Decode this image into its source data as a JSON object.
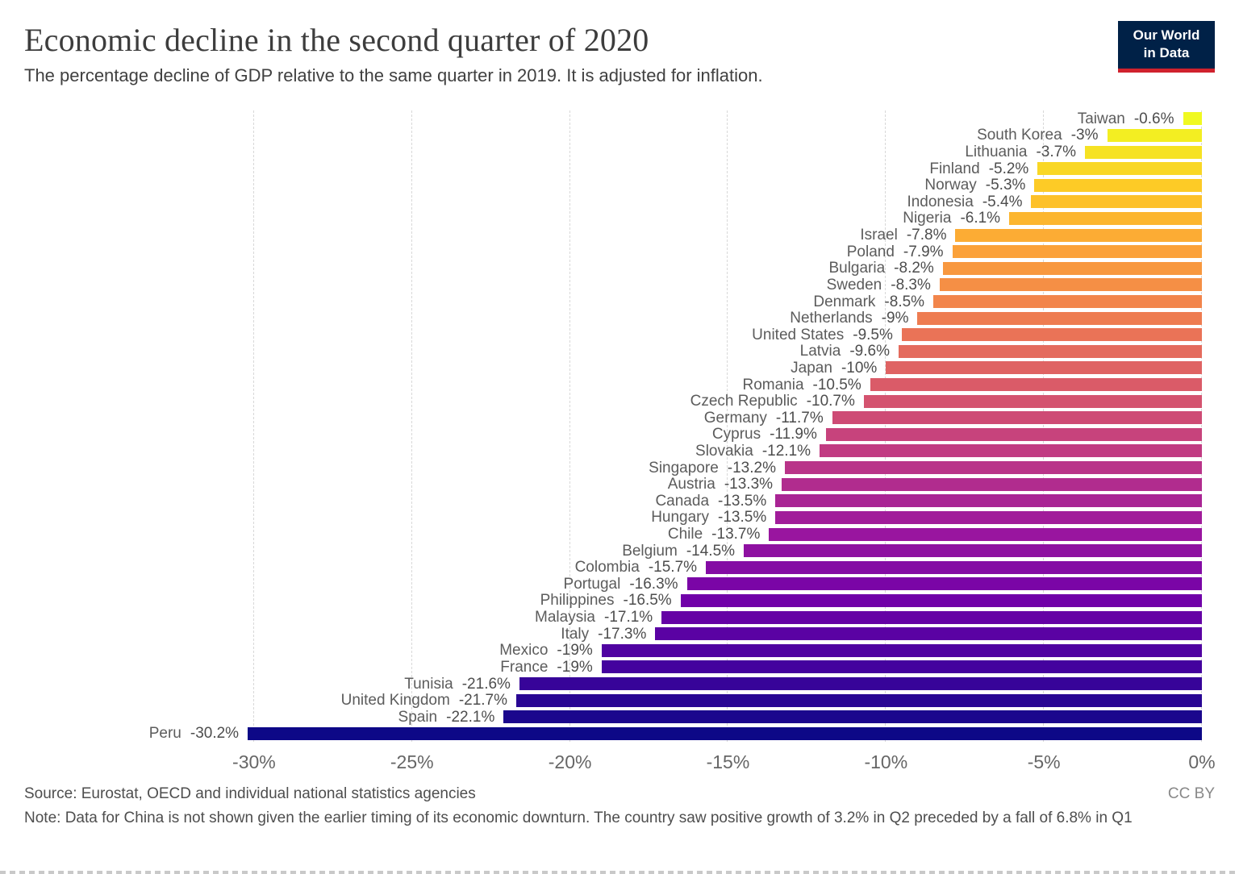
{
  "header": {
    "title": "Economic decline in the second quarter of 2020",
    "subtitle": "The percentage decline of GDP relative to the same quarter in 2019. It is adjusted for inflation."
  },
  "logo": {
    "line1": "Our World",
    "line2": "in Data",
    "bg_color": "#002147",
    "accent_color": "#d0222d"
  },
  "footer": {
    "source": "Source: Eurostat, OECD and individual national statistics agencies",
    "license": "CC BY",
    "note": "Note: Data for China is not shown given the earlier timing of its economic downturn. The country saw positive growth of 3.2% in Q2 preceded by a fall of 6.8% in Q1"
  },
  "chart_data": {
    "type": "bar",
    "orientation": "horizontal",
    "title": "Economic decline in the second quarter of 2020",
    "categories": [
      "Taiwan",
      "South Korea",
      "Lithuania",
      "Finland",
      "Norway",
      "Indonesia",
      "Nigeria",
      "Israel",
      "Poland",
      "Bulgaria",
      "Sweden",
      "Denmark",
      "Netherlands",
      "United States",
      "Latvia",
      "Japan",
      "Romania",
      "Czech Republic",
      "Germany",
      "Cyprus",
      "Slovakia",
      "Singapore",
      "Austria",
      "Canada",
      "Hungary",
      "Chile",
      "Belgium",
      "Colombia",
      "Portugal",
      "Philippines",
      "Malaysia",
      "Italy",
      "Mexico",
      "France",
      "Tunisia",
      "United Kingdom",
      "Spain",
      "Peru"
    ],
    "values": [
      -0.6,
      -3,
      -3.7,
      -5.2,
      -5.3,
      -5.4,
      -6.1,
      -7.8,
      -7.9,
      -8.2,
      -8.3,
      -8.5,
      -9,
      -9.5,
      -9.6,
      -10,
      -10.5,
      -10.7,
      -11.7,
      -11.9,
      -12.1,
      -13.2,
      -13.3,
      -13.5,
      -13.5,
      -13.7,
      -14.5,
      -15.7,
      -16.3,
      -16.5,
      -17.1,
      -17.3,
      -19,
      -19,
      -21.6,
      -21.7,
      -22.1,
      -30.2
    ],
    "value_labels": [
      "-0.6%",
      "-3%",
      "-3.7%",
      "-5.2%",
      "-5.3%",
      "-5.4%",
      "-6.1%",
      "-7.8%",
      "-7.9%",
      "-8.2%",
      "-8.3%",
      "-8.5%",
      "-9%",
      "-9.5%",
      "-9.6%",
      "-10%",
      "-10.5%",
      "-10.7%",
      "-11.7%",
      "-11.9%",
      "-12.1%",
      "-13.2%",
      "-13.3%",
      "-13.5%",
      "-13.5%",
      "-13.7%",
      "-14.5%",
      "-15.7%",
      "-16.3%",
      "-16.5%",
      "-17.1%",
      "-17.3%",
      "-19%",
      "-19%",
      "-21.6%",
      "-21.7%",
      "-22.1%",
      "-30.2%"
    ],
    "x_ticks": [
      {
        "label": "-30%",
        "value": -30
      },
      {
        "label": "-25%",
        "value": -25
      },
      {
        "label": "-20%",
        "value": -20
      },
      {
        "label": "-15%",
        "value": -15
      },
      {
        "label": "-10%",
        "value": -10
      },
      {
        "label": "-5%",
        "value": -5
      },
      {
        "label": "0%",
        "value": 0
      }
    ],
    "xlim": [
      -30.5,
      0
    ],
    "grid": "dashed-vertical",
    "legend": "none",
    "palette": [
      "#0d0887",
      "#46039f",
      "#7201a8",
      "#9c179e",
      "#bd3786",
      "#d8576b",
      "#ed7953",
      "#fb9f3a",
      "#fdca26",
      "#f0f921"
    ],
    "color_mapping": "by rank: smallest decline (top) = last palette color, largest decline (bottom) = first palette color"
  }
}
